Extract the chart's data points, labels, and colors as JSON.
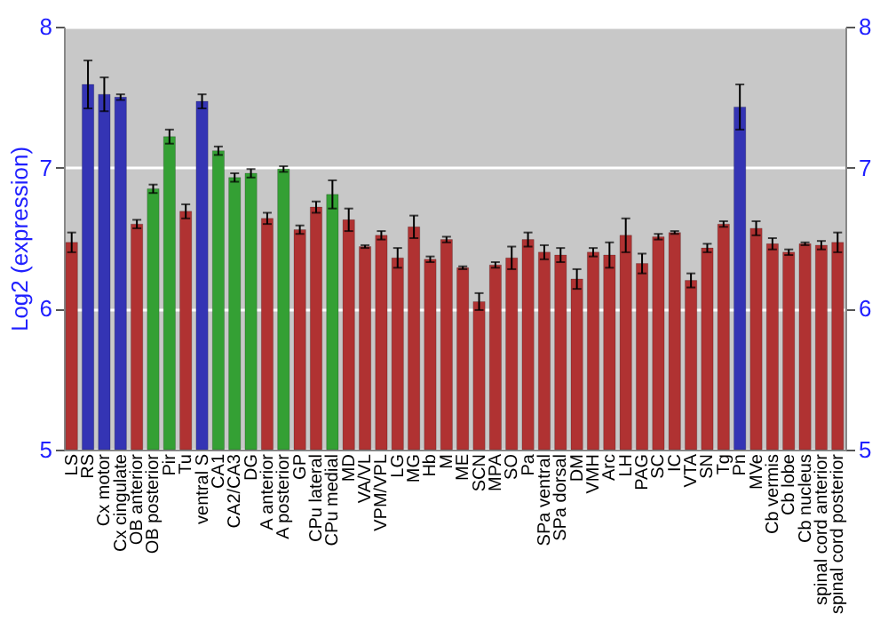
{
  "chart_data": {
    "type": "bar",
    "ylabel": "Log2 (expression)",
    "categories": [
      "LS",
      "RS",
      "Cx motor",
      "Cx cingulate",
      "OB anterior",
      "OB posterior",
      "Pir",
      "Tu",
      "ventral S",
      "CA1",
      "CA2/CA3",
      "DG",
      "A anterior",
      "A posterior",
      "GP",
      "CPu lateral",
      "CPu medial",
      "MD",
      "VA/VL",
      "VPM/VPL",
      "LG",
      "MG",
      "Hb",
      "M",
      "ME",
      "SCN",
      "MPA",
      "SO",
      "Pa",
      "SPa ventral",
      "SPa dorsal",
      "DM",
      "VMH",
      "Arc",
      "LH",
      "PAG",
      "SC",
      "IC",
      "VTA",
      "SN",
      "Tg",
      "Pn",
      "MVe",
      "Cb vermis",
      "Cb lobe",
      "Cb nucleus",
      "spinal cord anterior",
      "spinal cord posterior"
    ],
    "values": [
      6.47,
      7.59,
      7.52,
      7.5,
      6.6,
      6.85,
      7.22,
      6.69,
      7.47,
      7.12,
      6.93,
      6.96,
      6.64,
      6.99,
      6.56,
      6.72,
      6.81,
      6.63,
      6.44,
      6.52,
      6.36,
      6.58,
      6.35,
      6.49,
      6.29,
      6.05,
      6.31,
      6.36,
      6.49,
      6.4,
      6.38,
      6.21,
      6.4,
      6.38,
      6.52,
      6.32,
      6.51,
      6.54,
      6.2,
      6.43,
      6.6,
      7.43,
      6.57,
      6.46,
      6.4,
      6.46,
      6.45,
      6.47
    ],
    "errors": [
      0.07,
      0.17,
      0.12,
      0.02,
      0.03,
      0.03,
      0.05,
      0.05,
      0.05,
      0.03,
      0.03,
      0.03,
      0.04,
      0.02,
      0.03,
      0.04,
      0.1,
      0.08,
      0.01,
      0.03,
      0.07,
      0.08,
      0.02,
      0.02,
      0.01,
      0.06,
      0.02,
      0.08,
      0.05,
      0.05,
      0.05,
      0.07,
      0.03,
      0.09,
      0.12,
      0.07,
      0.02,
      0.01,
      0.05,
      0.03,
      0.02,
      0.16,
      0.05,
      0.04,
      0.02,
      0.01,
      0.03,
      0.07
    ],
    "colors": [
      "#b03232",
      "#3434b4",
      "#3434b4",
      "#3434b4",
      "#b03232",
      "#34a034",
      "#34a034",
      "#b03232",
      "#3434b4",
      "#34a034",
      "#34a034",
      "#34a034",
      "#b03232",
      "#34a034",
      "#b03232",
      "#b03232",
      "#34a034",
      "#b03232",
      "#b03232",
      "#b03232",
      "#b03232",
      "#b03232",
      "#b03232",
      "#b03232",
      "#b03232",
      "#b03232",
      "#b03232",
      "#b03232",
      "#b03232",
      "#b03232",
      "#b03232",
      "#b03232",
      "#b03232",
      "#b03232",
      "#b03232",
      "#b03232",
      "#b03232",
      "#b03232",
      "#b03232",
      "#b03232",
      "#b03232",
      "#3434b4",
      "#b03232",
      "#b03232",
      "#b03232",
      "#b03232",
      "#b03232",
      "#b03232"
    ],
    "ylim": [
      5,
      8
    ],
    "yticks": [
      5,
      6,
      7,
      8
    ],
    "y2lim": [
      5,
      8
    ],
    "y2ticks": [
      5,
      6,
      7,
      8
    ],
    "grid": "y"
  }
}
